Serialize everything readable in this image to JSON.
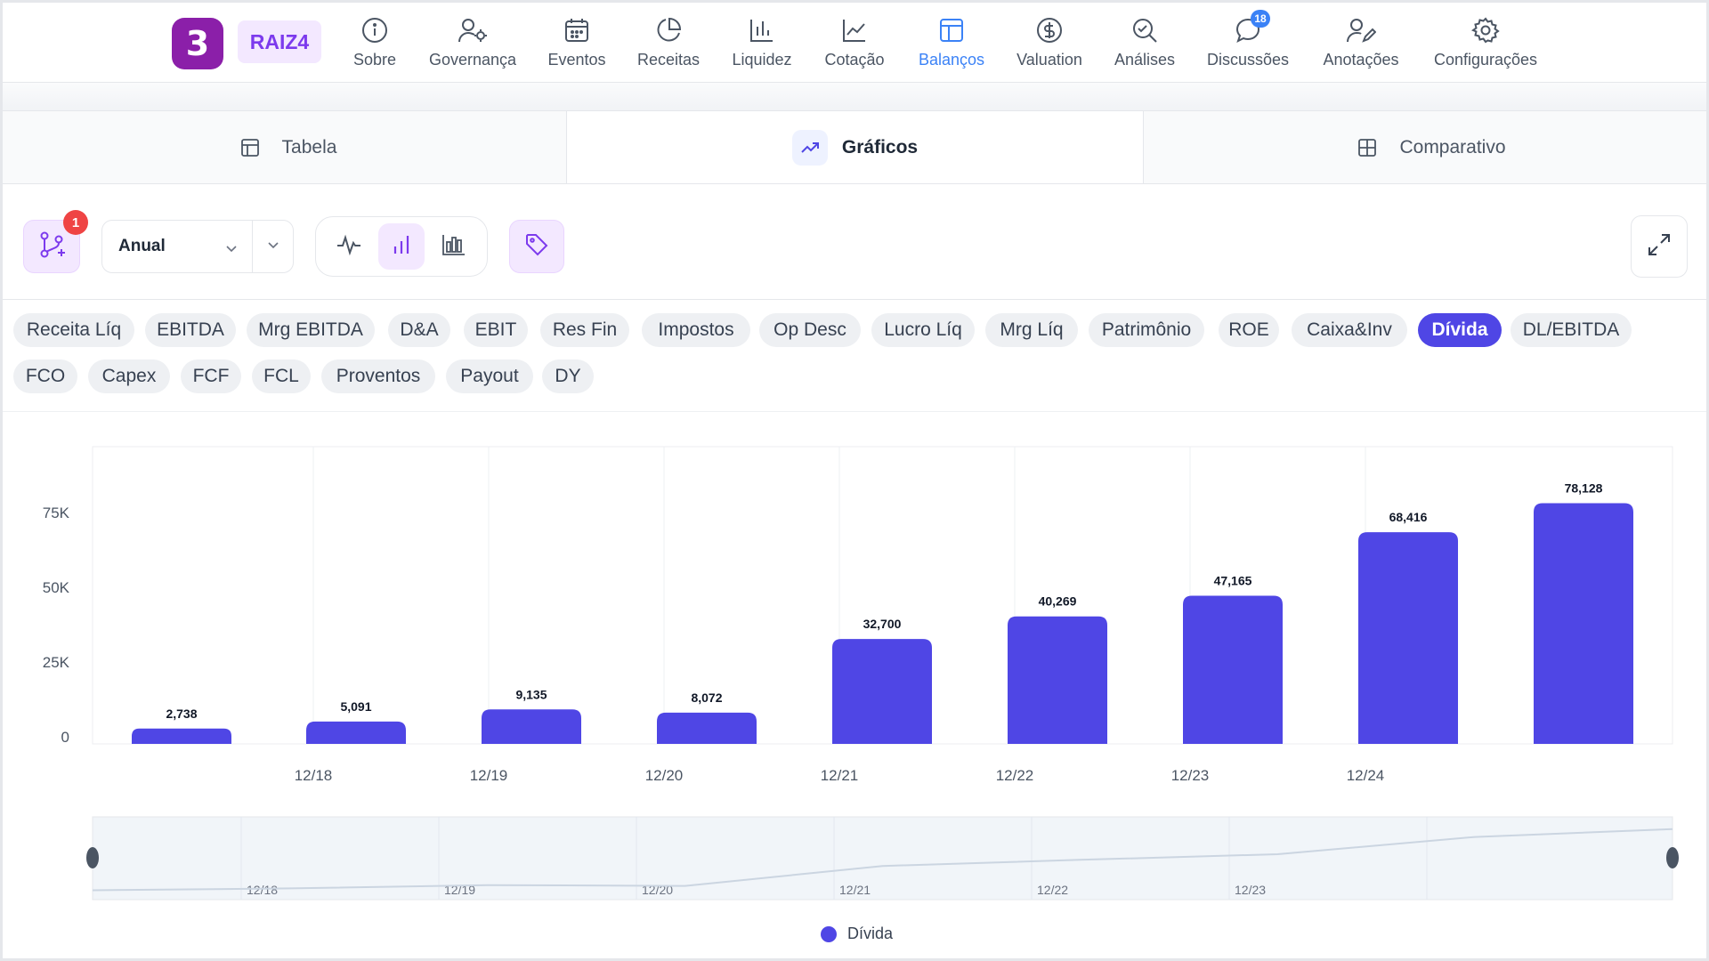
{
  "brand": {
    "logo_glyph": "3",
    "ticker": "RAIZ4"
  },
  "nav": [
    {
      "label": "Sobre",
      "icon": "info-icon"
    },
    {
      "label": "Governança",
      "icon": "user-gear-icon"
    },
    {
      "label": "Eventos",
      "icon": "calendar-icon"
    },
    {
      "label": "Receitas",
      "icon": "pie-chart-icon"
    },
    {
      "label": "Liquidez",
      "icon": "bar-chart-icon"
    },
    {
      "label": "Cotação",
      "icon": "line-chart-icon"
    },
    {
      "label": "Balanços",
      "icon": "layout-icon",
      "active": true
    },
    {
      "label": "Valuation",
      "icon": "dollar-icon"
    },
    {
      "label": "Análises",
      "icon": "search-check-icon"
    },
    {
      "label": "Discussões",
      "icon": "chat-icon",
      "badge": "18"
    },
    {
      "label": "Anotações",
      "icon": "user-pen-icon"
    },
    {
      "label": "Configurações",
      "icon": "gear-icon"
    }
  ],
  "tabs": [
    {
      "label": "Tabela",
      "icon": "table-icon"
    },
    {
      "label": "Gráficos",
      "icon": "trend-icon",
      "active": true
    },
    {
      "label": "Comparativo",
      "icon": "compare-icon"
    }
  ],
  "toolbar": {
    "branch_badge": "1",
    "period_value": "Anual"
  },
  "metrics": [
    "Receita Líq",
    "EBITDA",
    "Mrg EBITDA",
    "D&A",
    "EBIT",
    "Res Fin",
    "Impostos",
    "Op Desc",
    "Lucro Líq",
    "Mrg Líq",
    "Patrimônio",
    "ROE",
    "Caixa&Inv",
    "Dívida",
    "DL/EBITDA",
    "FCO",
    "Capex",
    "FCF",
    "FCL",
    "Proventos",
    "Payout",
    "DY"
  ],
  "active_metric": "Dívida",
  "colors": {
    "accent": "#4f46e5",
    "nav_active": "#3b82f6",
    "badge_red": "#ef4444"
  },
  "chart_data": {
    "type": "bar",
    "categories": [
      "",
      "12/18",
      "12/19",
      "12/20",
      "12/21",
      "12/22",
      "12/23",
      "12/24",
      ""
    ],
    "values": [
      2738,
      5091,
      9135,
      8072,
      32700,
      40269,
      47165,
      68416,
      78128
    ],
    "value_labels": [
      "2,738",
      "5,091",
      "9,135",
      "8,072",
      "32,700",
      "40,269",
      "47,165",
      "68,416",
      "78,128"
    ],
    "y_ticks": [
      "0",
      "25K",
      "50K",
      "75K"
    ],
    "y_tick_values": [
      0,
      25000,
      50000,
      75000
    ],
    "ylim": [
      0,
      100000
    ],
    "series": [
      {
        "name": "Dívida",
        "values": [
          2738,
          5091,
          9135,
          8072,
          32700,
          40269,
          47165,
          68416,
          78128
        ]
      }
    ],
    "legend": "bottom-center",
    "navigator_labels": [
      "12/18",
      "12/19",
      "12/20",
      "12/21",
      "12/22",
      "12/23"
    ]
  }
}
